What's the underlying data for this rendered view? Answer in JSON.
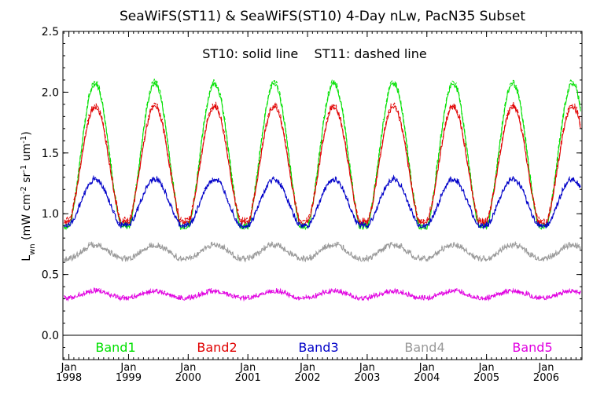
{
  "chart_data": {
    "type": "line",
    "title": "SeaWiFS(ST11) & SeaWiFS(ST10) 4-Day nLw, PacN35 Subset",
    "annotation": "ST10: solid line    ST11: dashed line",
    "ylabel_main": "L",
    "ylabel_sub": "wn",
    "ylabel_units": "(mW cm",
    "ylabel_units_parts": [
      "(mW cm",
      "-2",
      " sr",
      "-1",
      " um",
      "-1",
      ")"
    ],
    "ylim": [
      -0.2,
      2.5
    ],
    "yticks": [
      0.0,
      0.5,
      1.0,
      1.5,
      2.0,
      2.5
    ],
    "ytick_labels": [
      "0.0",
      "0.5",
      "1.0",
      "1.5",
      "2.0",
      "2.5"
    ],
    "xlim": [
      1997.9,
      2006.6
    ],
    "xtick_top": [
      "Jan",
      "Jan",
      "Jan",
      "Jan",
      "Jan",
      "Jan",
      "Jan",
      "Jan",
      "Jan"
    ],
    "xtick_bottom": [
      "1998",
      "1999",
      "2000",
      "2001",
      "2002",
      "2003",
      "2004",
      "2005",
      "2006"
    ],
    "xtick_values": [
      1998,
      1999,
      2000,
      2001,
      2002,
      2003,
      2004,
      2005,
      2006
    ],
    "zero_line": 0.0,
    "grid": false,
    "legend_position": "bottom",
    "series": [
      {
        "name": "Band1",
        "color": "#00e000",
        "mean": 1.45,
        "amp": 0.62,
        "jitter": 0.04,
        "phase": 0.0,
        "dash_offset": 0.02
      },
      {
        "name": "Band2",
        "color": "#e00000",
        "mean": 1.38,
        "amp": 0.5,
        "jitter": 0.04,
        "phase": 0.0,
        "dash_offset": 0.02
      },
      {
        "name": "Band3",
        "color": "#0000c8",
        "mean": 1.08,
        "amp": 0.2,
        "jitter": 0.04,
        "phase": 0.0,
        "dash_offset": 0.01
      },
      {
        "name": "Band4",
        "color": "#999999",
        "mean": 0.68,
        "amp": 0.06,
        "jitter": 0.04,
        "phase": 0.0,
        "dash_offset": 0.01
      },
      {
        "name": "Band5",
        "color": "#e000e0",
        "mean": 0.33,
        "amp": 0.03,
        "jitter": 0.03,
        "phase": 0.0,
        "dash_offset": 0.01
      }
    ]
  }
}
